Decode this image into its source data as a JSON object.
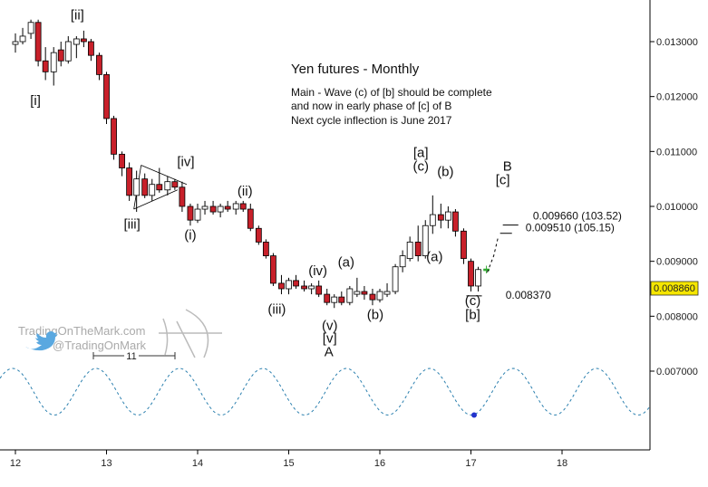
{
  "chart_data": {
    "type": "candlestick",
    "title": "Yen futures - Monthly",
    "notes": [
      "Main - Wave (c) of [b] should be complete",
      "and now in early phase of [c] of B",
      "Next cycle inflection is June 2017"
    ],
    "x_ticks": [
      "12",
      "13",
      "14",
      "15",
      "16",
      "17",
      "18"
    ],
    "y_ticks": [
      "0.007000",
      "0.008000",
      "0.009000",
      "0.010000",
      "0.011000",
      "0.012000",
      "0.013000"
    ],
    "xlim": [
      11.95,
      18.95
    ],
    "ylim": [
      0.0061,
      0.01365
    ],
    "last_price": "0.008860",
    "candles": [
      {
        "x": 12.0,
        "o": 0.01295,
        "h": 0.01315,
        "l": 0.0128,
        "c": 0.013
      },
      {
        "x": 12.08,
        "o": 0.013,
        "h": 0.01325,
        "l": 0.01295,
        "c": 0.0131
      },
      {
        "x": 12.17,
        "o": 0.01315,
        "h": 0.0134,
        "l": 0.01305,
        "c": 0.01335
      },
      {
        "x": 12.25,
        "o": 0.01335,
        "h": 0.0134,
        "l": 0.01255,
        "c": 0.01265
      },
      {
        "x": 12.33,
        "o": 0.01265,
        "h": 0.0129,
        "l": 0.0123,
        "c": 0.01245
      },
      {
        "x": 12.42,
        "o": 0.01245,
        "h": 0.0129,
        "l": 0.0122,
        "c": 0.0128
      },
      {
        "x": 12.5,
        "o": 0.01285,
        "h": 0.013,
        "l": 0.01255,
        "c": 0.01265
      },
      {
        "x": 12.58,
        "o": 0.01265,
        "h": 0.0131,
        "l": 0.0126,
        "c": 0.013
      },
      {
        "x": 12.67,
        "o": 0.01295,
        "h": 0.0131,
        "l": 0.0127,
        "c": 0.01305
      },
      {
        "x": 12.75,
        "o": 0.01305,
        "h": 0.0132,
        "l": 0.0129,
        "c": 0.013
      },
      {
        "x": 12.83,
        "o": 0.013,
        "h": 0.01305,
        "l": 0.01265,
        "c": 0.01275
      },
      {
        "x": 12.92,
        "o": 0.01275,
        "h": 0.0128,
        "l": 0.0123,
        "c": 0.0124
      },
      {
        "x": 13.0,
        "o": 0.0124,
        "h": 0.01245,
        "l": 0.0115,
        "c": 0.0116
      },
      {
        "x": 13.08,
        "o": 0.0116,
        "h": 0.01165,
        "l": 0.01085,
        "c": 0.01095
      },
      {
        "x": 13.17,
        "o": 0.01095,
        "h": 0.011,
        "l": 0.01055,
        "c": 0.0107
      },
      {
        "x": 13.25,
        "o": 0.0107,
        "h": 0.0108,
        "l": 0.0101,
        "c": 0.0102
      },
      {
        "x": 13.33,
        "o": 0.0102,
        "h": 0.01065,
        "l": 0.0099,
        "c": 0.0105
      },
      {
        "x": 13.42,
        "o": 0.0105,
        "h": 0.0106,
        "l": 0.01015,
        "c": 0.0102
      },
      {
        "x": 13.5,
        "o": 0.0102,
        "h": 0.0105,
        "l": 0.0101,
        "c": 0.0104
      },
      {
        "x": 13.58,
        "o": 0.0104,
        "h": 0.0107,
        "l": 0.01025,
        "c": 0.0103
      },
      {
        "x": 13.67,
        "o": 0.0103,
        "h": 0.01055,
        "l": 0.0102,
        "c": 0.01045
      },
      {
        "x": 13.75,
        "o": 0.01045,
        "h": 0.0105,
        "l": 0.0103,
        "c": 0.01035
      },
      {
        "x": 13.83,
        "o": 0.01035,
        "h": 0.01045,
        "l": 0.0099,
        "c": 0.01
      },
      {
        "x": 13.92,
        "o": 0.01,
        "h": 0.01005,
        "l": 0.00965,
        "c": 0.00975
      },
      {
        "x": 14.0,
        "o": 0.00975,
        "h": 0.01005,
        "l": 0.0097,
        "c": 0.00995
      },
      {
        "x": 14.08,
        "o": 0.00995,
        "h": 0.0101,
        "l": 0.00985,
        "c": 0.01
      },
      {
        "x": 14.17,
        "o": 0.01,
        "h": 0.0101,
        "l": 0.00985,
        "c": 0.0099
      },
      {
        "x": 14.25,
        "o": 0.0099,
        "h": 0.01005,
        "l": 0.0098,
        "c": 0.01
      },
      {
        "x": 14.33,
        "o": 0.01,
        "h": 0.0101,
        "l": 0.0099,
        "c": 0.00995
      },
      {
        "x": 14.42,
        "o": 0.00995,
        "h": 0.0101,
        "l": 0.00985,
        "c": 0.01005
      },
      {
        "x": 14.5,
        "o": 0.01005,
        "h": 0.0101,
        "l": 0.0099,
        "c": 0.00995
      },
      {
        "x": 14.58,
        "o": 0.00995,
        "h": 0.01005,
        "l": 0.00955,
        "c": 0.0096
      },
      {
        "x": 14.67,
        "o": 0.0096,
        "h": 0.00965,
        "l": 0.0093,
        "c": 0.00935
      },
      {
        "x": 14.75,
        "o": 0.00935,
        "h": 0.0094,
        "l": 0.00905,
        "c": 0.0091
      },
      {
        "x": 14.83,
        "o": 0.0091,
        "h": 0.00915,
        "l": 0.00855,
        "c": 0.0086
      },
      {
        "x": 14.92,
        "o": 0.0086,
        "h": 0.00875,
        "l": 0.0084,
        "c": 0.0085
      },
      {
        "x": 15.0,
        "o": 0.0085,
        "h": 0.0087,
        "l": 0.0084,
        "c": 0.00865
      },
      {
        "x": 15.08,
        "o": 0.00865,
        "h": 0.00875,
        "l": 0.0085,
        "c": 0.00855
      },
      {
        "x": 15.17,
        "o": 0.00855,
        "h": 0.00865,
        "l": 0.00845,
        "c": 0.0085
      },
      {
        "x": 15.25,
        "o": 0.0085,
        "h": 0.0086,
        "l": 0.0084,
        "c": 0.00855
      },
      {
        "x": 15.33,
        "o": 0.00855,
        "h": 0.00865,
        "l": 0.00835,
        "c": 0.0084
      },
      {
        "x": 15.42,
        "o": 0.0084,
        "h": 0.0085,
        "l": 0.0082,
        "c": 0.00825
      },
      {
        "x": 15.5,
        "o": 0.00825,
        "h": 0.0084,
        "l": 0.00815,
        "c": 0.00835
      },
      {
        "x": 15.58,
        "o": 0.00835,
        "h": 0.00845,
        "l": 0.0082,
        "c": 0.00825
      },
      {
        "x": 15.67,
        "o": 0.00825,
        "h": 0.00855,
        "l": 0.0082,
        "c": 0.0085
      },
      {
        "x": 15.75,
        "o": 0.0084,
        "h": 0.0087,
        "l": 0.00835,
        "c": 0.00845
      },
      {
        "x": 15.83,
        "o": 0.00845,
        "h": 0.00855,
        "l": 0.0083,
        "c": 0.0084
      },
      {
        "x": 15.92,
        "o": 0.0084,
        "h": 0.0085,
        "l": 0.0082,
        "c": 0.0083
      },
      {
        "x": 16.0,
        "o": 0.0083,
        "h": 0.0085,
        "l": 0.00825,
        "c": 0.00845
      },
      {
        "x": 16.08,
        "o": 0.0084,
        "h": 0.0086,
        "l": 0.00835,
        "c": 0.00845
      },
      {
        "x": 16.17,
        "o": 0.00845,
        "h": 0.00895,
        "l": 0.0084,
        "c": 0.0089
      },
      {
        "x": 16.25,
        "o": 0.0089,
        "h": 0.0092,
        "l": 0.0088,
        "c": 0.0091
      },
      {
        "x": 16.33,
        "o": 0.00905,
        "h": 0.00945,
        "l": 0.009,
        "c": 0.00935
      },
      {
        "x": 16.42,
        "o": 0.00935,
        "h": 0.00965,
        "l": 0.009,
        "c": 0.0091
      },
      {
        "x": 16.5,
        "o": 0.0091,
        "h": 0.00975,
        "l": 0.00905,
        "c": 0.00965
      },
      {
        "x": 16.58,
        "o": 0.00965,
        "h": 0.0102,
        "l": 0.0095,
        "c": 0.00985
      },
      {
        "x": 16.67,
        "o": 0.00985,
        "h": 0.01005,
        "l": 0.0096,
        "c": 0.00975
      },
      {
        "x": 16.75,
        "o": 0.00975,
        "h": 0.01,
        "l": 0.0096,
        "c": 0.0099
      },
      {
        "x": 16.83,
        "o": 0.0099,
        "h": 0.00995,
        "l": 0.00945,
        "c": 0.00955
      },
      {
        "x": 16.92,
        "o": 0.00955,
        "h": 0.0096,
        "l": 0.00895,
        "c": 0.00905
      },
      {
        "x": 17.0,
        "o": 0.009,
        "h": 0.00905,
        "l": 0.00845,
        "c": 0.00855
      },
      {
        "x": 17.08,
        "o": 0.00855,
        "h": 0.0089,
        "l": 0.00845,
        "c": 0.00885
      },
      {
        "x": 17.17,
        "o": 0.00883,
        "h": 0.00892,
        "l": 0.00878,
        "c": 0.00886
      }
    ],
    "wave_labels": [
      {
        "text": "[ii]",
        "x": 12.68,
        "y": 0.0134
      },
      {
        "text": "[i]",
        "x": 12.22,
        "y": 0.01185
      },
      {
        "text": "[iv]",
        "x": 13.87,
        "y": 0.01073
      },
      {
        "text": "[iii]",
        "x": 13.28,
        "y": 0.0096
      },
      {
        "text": "(ii)",
        "x": 14.52,
        "y": 0.0102
      },
      {
        "text": "(i)",
        "x": 13.92,
        "y": 0.0094
      },
      {
        "text": "(iii)",
        "x": 14.87,
        "y": 0.00805
      },
      {
        "text": "(iv)",
        "x": 15.32,
        "y": 0.00875
      },
      {
        "text": "(v)",
        "x": 15.45,
        "y": 0.00775
      },
      {
        "text": "[v]",
        "x": 15.45,
        "y": 0.00752
      },
      {
        "text": "A",
        "x": 15.44,
        "y": 0.00727
      },
      {
        "text": "(a)",
        "x": 15.63,
        "y": 0.0089
      },
      {
        "text": "(b)",
        "x": 15.95,
        "y": 0.00795
      },
      {
        "text": "[a]",
        "x": 16.45,
        "y": 0.0109
      },
      {
        "text": "(c)",
        "x": 16.45,
        "y": 0.01065
      },
      {
        "text": "(b)",
        "x": 16.72,
        "y": 0.01055
      },
      {
        "text": "(a)",
        "x": 16.6,
        "y": 0.009
      },
      {
        "text": "(c)",
        "x": 17.02,
        "y": 0.0082
      },
      {
        "text": "[b]",
        "x": 17.02,
        "y": 0.00795
      },
      {
        "text": "B",
        "x": 17.4,
        "y": 0.01065
      },
      {
        "text": "[c]",
        "x": 17.35,
        "y": 0.0104
      }
    ],
    "annotations": [
      {
        "text": "0.009660 (103.52)",
        "x": 17.68,
        "y": 0.00976
      },
      {
        "text": "0.009510 (105.15)",
        "x": 17.6,
        "y": 0.00955
      },
      {
        "text": "0.008370",
        "x": 17.38,
        "y": 0.00832
      }
    ],
    "target_lines": [
      {
        "x1": 17.35,
        "x2": 17.52,
        "y": 0.00966
      },
      {
        "x1": 17.32,
        "x2": 17.45,
        "y": 0.00951
      },
      {
        "x1": 16.95,
        "x2": 17.12,
        "y": 0.00837
      }
    ],
    "projection": [
      [
        17.18,
        0.0088
      ],
      [
        17.25,
        0.0091
      ],
      [
        17.3,
        0.00945
      ]
    ],
    "cycle": {
      "period_label": "11",
      "amplitude_low": 0.0062,
      "amplitude_high": 0.00705
    },
    "watermark": {
      "site": "TradingOnTheMark.com",
      "handle": "@TradingOnMark"
    }
  }
}
